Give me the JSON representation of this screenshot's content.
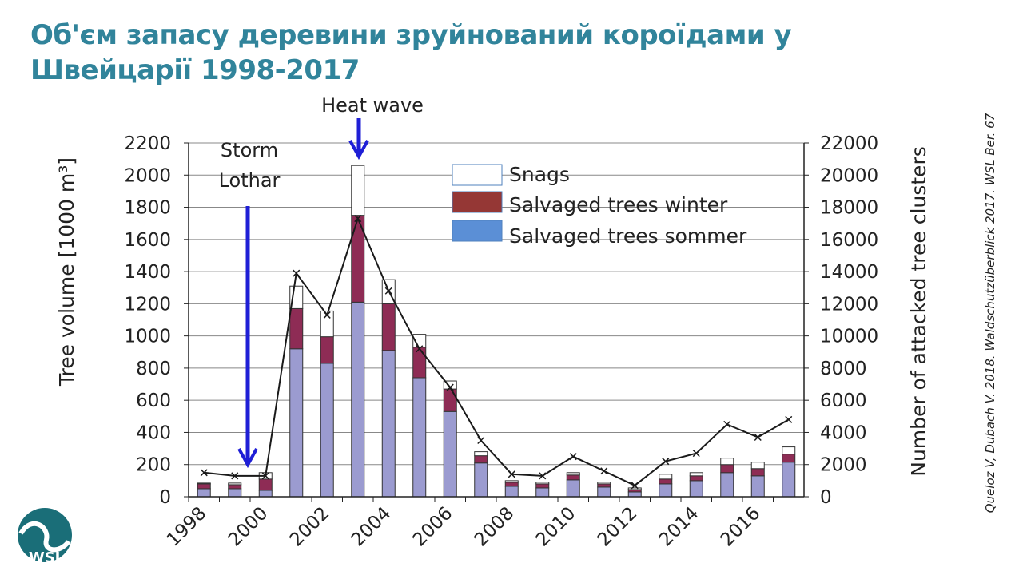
{
  "title": "Об'єм запасу деревини зруйнований короїдами у Швейцарії 1998-2017",
  "citation": "Queloz V, Dubach V. 2018. Waldschutzüberblick 2017. WSL Ber. 67",
  "logo": {
    "text": "WSL",
    "color": "#1a6e78"
  },
  "chart_data": {
    "type": "bar",
    "stacked": true,
    "x": [
      1998,
      1999,
      2000,
      2001,
      2002,
      2003,
      2004,
      2005,
      2006,
      2007,
      2008,
      2009,
      2010,
      2011,
      2012,
      2013,
      2014,
      2015,
      2016,
      2017
    ],
    "x_tick_labels": [
      "1998",
      "2000",
      "2002",
      "2004",
      "2006",
      "2008",
      "2010",
      "2012",
      "2014",
      "2016"
    ],
    "ylabel": "Tree volume [1000 m³]",
    "ylim": [
      0,
      2200
    ],
    "y_ticks": [
      0,
      200,
      400,
      600,
      800,
      1000,
      1200,
      1400,
      1600,
      1800,
      2000,
      2200
    ],
    "y2label": "Number of attacked tree clusters",
    "y2lim": [
      0,
      22000
    ],
    "y2_ticks": [
      0,
      2000,
      4000,
      6000,
      8000,
      10000,
      12000,
      14000,
      16000,
      18000,
      20000,
      22000
    ],
    "grid": "horizontal",
    "legend_position": "top-center",
    "series": [
      {
        "name": "Salvaged trees sommer",
        "color": "#9b9bd0",
        "legend_color": "#5b8fd6",
        "values": [
          50,
          50,
          40,
          920,
          830,
          1210,
          910,
          740,
          530,
          210,
          65,
          55,
          105,
          60,
          30,
          80,
          100,
          150,
          130,
          215
        ]
      },
      {
        "name": "Salvaged trees winter",
        "color": "#8e2c55",
        "legend_color": "#953735",
        "values": [
          30,
          25,
          70,
          250,
          165,
          540,
          290,
          190,
          140,
          45,
          25,
          25,
          30,
          20,
          15,
          30,
          30,
          50,
          45,
          50
        ]
      },
      {
        "name": "Snags",
        "color": "#ffffff",
        "legend_color": "#ffffff",
        "values": [
          5,
          10,
          40,
          140,
          160,
          310,
          150,
          80,
          50,
          25,
          10,
          10,
          15,
          10,
          10,
          30,
          20,
          40,
          40,
          45
        ]
      }
    ],
    "line_series": {
      "axis": "right",
      "marker": "x",
      "color": "#1a1a1a",
      "values": [
        1500,
        1300,
        1300,
        13900,
        11300,
        17300,
        12800,
        9200,
        6800,
        3500,
        1400,
        1300,
        2500,
        1600,
        700,
        2200,
        2700,
        4500,
        3700,
        4800
      ]
    },
    "annotations": [
      {
        "text": "Storm Lothar",
        "lines": [
          "Storm",
          "Lothar"
        ],
        "x": 1999.5,
        "arrow_color": "#1f1fd6"
      },
      {
        "text": "Heat wave",
        "x": 2003,
        "arrow_color": "#1f1fd6"
      }
    ]
  }
}
